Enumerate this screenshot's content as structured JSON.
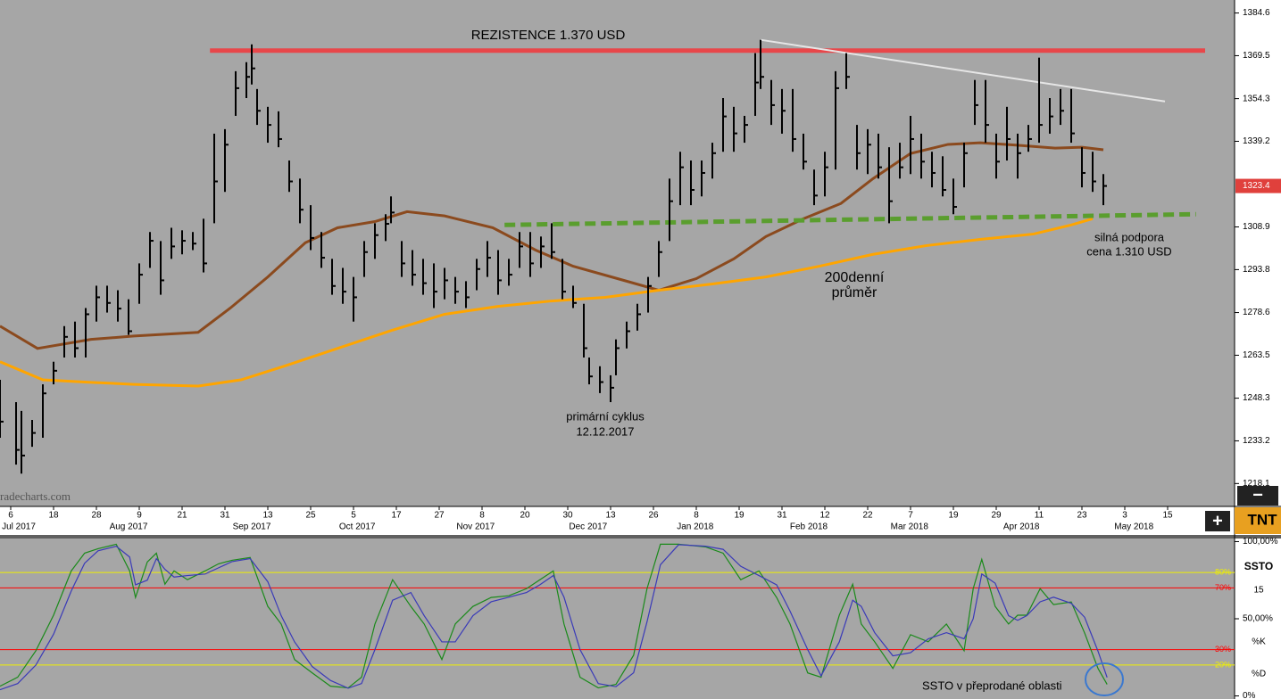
{
  "chart_data": [
    {
      "type": "ohlc",
      "color": "#000000",
      "x": [
        0,
        3,
        4,
        6,
        8,
        10,
        12,
        14,
        16,
        18,
        20,
        22,
        24,
        26,
        28,
        30,
        32,
        34,
        36,
        38,
        40,
        42,
        44,
        46,
        47,
        48,
        50,
        52,
        54,
        56,
        58,
        60,
        62,
        64,
        66,
        68,
        70,
        72,
        73,
        75,
        77,
        79,
        81,
        83,
        85,
        87,
        89,
        91,
        93,
        95,
        97,
        99,
        101,
        103,
        105,
        107,
        109,
        110,
        112,
        114,
        115,
        117,
        119,
        121,
        123,
        125,
        127,
        129,
        131,
        133,
        135,
        137,
        139,
        141,
        142,
        144,
        146,
        148,
        150,
        152,
        154,
        156,
        158,
        160,
        162,
        164,
        166,
        168,
        170,
        172,
        174,
        176,
        178,
        180,
        182,
        184,
        186,
        188,
        190,
        192,
        194,
        196,
        198,
        200,
        202,
        204,
        206
      ],
      "high": [
        1254.8,
        1246.9,
        1243.8,
        1240.6,
        1253.2,
        1261.2,
        1273.8,
        1275.4,
        1280.2,
        1288.1,
        1288.1,
        1286.5,
        1283.3,
        1296.0,
        1307.1,
        1303.9,
        1308.6,
        1307.7,
        1307.1,
        1311.8,
        1341.9,
        1343.5,
        1364.0,
        1367.2,
        1373.5,
        1357.7,
        1351.4,
        1349.8,
        1332.4,
        1326.0,
        1316.6,
        1307.1,
        1297.6,
        1294.4,
        1291.2,
        1303.9,
        1310.2,
        1313.4,
        1319.7,
        1303.9,
        1300.7,
        1297.6,
        1296.0,
        1294.4,
        1291.2,
        1289.7,
        1297.6,
        1303.9,
        1300.7,
        1297.6,
        1307.1,
        1307.1,
        1305.5,
        1310.2,
        1297.6,
        1288.1,
        1281.7,
        1262.7,
        1259.6,
        1256.4,
        1269.1,
        1275.4,
        1281.7,
        1291.2,
        1303.9,
        1326.0,
        1335.5,
        1332.4,
        1332.4,
        1338.7,
        1354.5,
        1351.4,
        1348.2,
        1370.4,
        1375.1,
        1360.9,
        1357.7,
        1357.7,
        1341.9,
        1329.2,
        1335.5,
        1364.0,
        1370.4,
        1345.0,
        1343.5,
        1341.9,
        1337.1,
        1338.7,
        1348.2,
        1341.9,
        1335.5,
        1333.9,
        1326.0,
        1338.7,
        1360.9,
        1360.9,
        1341.9,
        1351.4,
        1341.9,
        1345.0,
        1368.8,
        1354.5,
        1357.7,
        1357.7,
        1337.1,
        1335.5,
        1327.6
      ],
      "low": [
        1234.3,
        1224.8,
        1221.6,
        1231.1,
        1234.3,
        1253.2,
        1262.7,
        1262.7,
        1262.7,
        1275.4,
        1278.6,
        1275.4,
        1270.7,
        1281.7,
        1294.4,
        1284.9,
        1297.6,
        1299.2,
        1300.7,
        1292.8,
        1310.2,
        1321.3,
        1348.2,
        1354.5,
        1359.3,
        1345.0,
        1338.7,
        1337.1,
        1321.3,
        1310.2,
        1300.7,
        1294.4,
        1284.9,
        1281.7,
        1275.4,
        1291.2,
        1297.6,
        1303.9,
        1310.2,
        1291.2,
        1288.1,
        1284.9,
        1280.2,
        1283.3,
        1281.7,
        1280.2,
        1286.5,
        1291.2,
        1284.9,
        1288.1,
        1294.4,
        1291.2,
        1294.4,
        1297.6,
        1283.3,
        1280.2,
        1262.7,
        1253.2,
        1250.1,
        1246.9,
        1256.4,
        1265.9,
        1272.2,
        1278.6,
        1291.2,
        1303.9,
        1316.6,
        1316.6,
        1319.7,
        1326.0,
        1335.5,
        1335.5,
        1338.7,
        1348.2,
        1357.7,
        1345.0,
        1341.9,
        1335.5,
        1329.2,
        1316.6,
        1319.7,
        1329.2,
        1357.7,
        1329.2,
        1327.6,
        1326.0,
        1310.2,
        1326.0,
        1327.6,
        1326.0,
        1322.9,
        1319.7,
        1313.4,
        1322.9,
        1345.0,
        1338.7,
        1326.0,
        1332.4,
        1326.0,
        1335.5,
        1338.7,
        1341.9,
        1345.0,
        1338.7,
        1322.9,
        1321.3,
        1316.6
      ],
      "close": [
        1240,
        1230,
        1228,
        1236,
        1250,
        1258,
        1270,
        1266,
        1278,
        1284,
        1282,
        1280,
        1272,
        1292,
        1304,
        1290,
        1302,
        1304,
        1303,
        1296,
        1325,
        1338,
        1358,
        1362,
        1365,
        1350,
        1345,
        1340,
        1325,
        1315,
        1305,
        1298,
        1288,
        1286,
        1284,
        1300,
        1306,
        1310,
        1314,
        1296,
        1292,
        1289,
        1286,
        1290,
        1286,
        1284,
        1294,
        1298,
        1290,
        1292,
        1302,
        1296,
        1302,
        1300,
        1286,
        1282,
        1266,
        1256,
        1254,
        1252,
        1266,
        1272,
        1278,
        1288,
        1300,
        1318,
        1330,
        1322,
        1328,
        1335,
        1348,
        1342,
        1345,
        1360,
        1362,
        1352,
        1350,
        1340,
        1332,
        1320,
        1330,
        1358,
        1362,
        1335,
        1338,
        1330,
        1318,
        1330,
        1340,
        1332,
        1328,
        1322,
        1316,
        1335,
        1352,
        1345,
        1332,
        1340,
        1335,
        1340,
        1345,
        1348,
        1350,
        1342,
        1328,
        1325,
        1323.4
      ],
      "series": [
        {
          "color": "#8b4a1e",
          "x": [
            0,
            7,
            17,
            25,
            37,
            43,
            50,
            57,
            63,
            70,
            76,
            83,
            92,
            100,
            107,
            117,
            123,
            130,
            137,
            143,
            150,
            157,
            163,
            170,
            177,
            183,
            190,
            197,
            202,
            206
          ],
          "values": [
            1273.8,
            1265.9,
            1269.1,
            1270.3,
            1271.6,
            1280.2,
            1291.2,
            1303.3,
            1308.6,
            1310.8,
            1314.3,
            1312.8,
            1308.6,
            1300.7,
            1295.0,
            1289.7,
            1286.5,
            1290.6,
            1297.6,
            1305.5,
            1311.8,
            1317.2,
            1326.0,
            1334.9,
            1338.1,
            1338.7,
            1337.8,
            1336.8,
            1337.1,
            1336.2
          ]
        },
        {
          "color": "#ffa500",
          "x": [
            0,
            8,
            17,
            25,
            37,
            45,
            53,
            63,
            73,
            83,
            93,
            103,
            113,
            123,
            133,
            143,
            153,
            163,
            173,
            183,
            193,
            200,
            204
          ],
          "values": [
            1261.2,
            1254.8,
            1253.9,
            1253.2,
            1252.6,
            1254.8,
            1259.6,
            1265.9,
            1272.2,
            1278.0,
            1280.8,
            1282.7,
            1284.0,
            1286.5,
            1288.7,
            1291.2,
            1295.0,
            1299.2,
            1302.3,
            1304.5,
            1306.4,
            1309.6,
            1311.8
          ]
        }
      ],
      "trendlines": [
        {
          "color": "#e8474a",
          "x": [
            39.2,
            225
          ],
          "values": [
            1371.3,
            1371.3
          ]
        },
        {
          "color": "#e6e6e6",
          "x": [
            142,
            217.5
          ],
          "values": [
            1375.1,
            1353.3
          ]
        },
        {
          "color": "#5a9e2e",
          "x": [
            94.2,
            223.3
          ],
          "values": [
            1309.6,
            1313.4
          ],
          "dashed": true
        }
      ],
      "xlim": [
        0,
        230.5
      ],
      "ylim": [
        1210.0,
        1389.2
      ],
      "yticks": [
        1384.6,
        1369.5,
        1354.3,
        1339.2,
        1308.9,
        1293.8,
        1278.6,
        1263.5,
        1248.3,
        1233.2,
        1218.1
      ],
      "last_price": 1323.4,
      "xticks": [
        {
          "value": 2,
          "label": "6"
        },
        {
          "value": 10,
          "label": "18"
        },
        {
          "value": 18,
          "label": "28"
        },
        {
          "value": 26,
          "label": "9"
        },
        {
          "value": 34,
          "label": "21"
        },
        {
          "value": 42,
          "label": "31"
        },
        {
          "value": 50,
          "label": "13"
        },
        {
          "value": 58,
          "label": "25"
        },
        {
          "value": 66,
          "label": "5"
        },
        {
          "value": 74,
          "label": "17"
        },
        {
          "value": 82,
          "label": "27"
        },
        {
          "value": 90,
          "label": "8"
        },
        {
          "value": 98,
          "label": "20"
        },
        {
          "value": 106,
          "label": "30"
        },
        {
          "value": 114,
          "label": "13"
        },
        {
          "value": 122,
          "label": "26"
        },
        {
          "value": 130,
          "label": "8"
        },
        {
          "value": 138,
          "label": "19"
        },
        {
          "value": 146,
          "label": "31"
        },
        {
          "value": 154,
          "label": "12"
        },
        {
          "value": 162,
          "label": "22"
        },
        {
          "value": 170,
          "label": "7"
        },
        {
          "value": 178,
          "label": "19"
        },
        {
          "value": 186,
          "label": "29"
        },
        {
          "value": 194,
          "label": "11"
        },
        {
          "value": 202,
          "label": "23"
        },
        {
          "value": 210,
          "label": "3"
        },
        {
          "value": 218,
          "label": "15"
        }
      ],
      "month_ticks": [
        {
          "value": 3.5,
          "label": "Jul 2017"
        },
        {
          "value": 24,
          "label": "Aug 2017"
        },
        {
          "value": 47,
          "label": "Sep 2017"
        },
        {
          "value": 66.7,
          "label": "Oct 2017"
        },
        {
          "value": 88.8,
          "label": "Nov 2017"
        },
        {
          "value": 109.8,
          "label": "Dec 2017"
        },
        {
          "value": 129.8,
          "label": "Jan 2018"
        },
        {
          "value": 151,
          "label": "Feb 2018"
        },
        {
          "value": 169.8,
          "label": "Mar 2018"
        },
        {
          "value": 190.7,
          "label": "Apr 2018"
        },
        {
          "value": 211.7,
          "label": "May 2018"
        }
      ],
      "annotations": [
        "REZISTENCE 1.370 USD",
        "silná podpora",
        "cena 1.310 USD",
        "200denní",
        "průměr",
        "primární cyklus",
        "12.12.2017"
      ],
      "watermark": "radecharts.com"
    },
    {
      "type": "line",
      "title": "SSTO",
      "period": 15,
      "series": [
        {
          "name": "%K",
          "color": "#1a8a1a",
          "x": [
            0,
            3.3,
            6.7,
            10,
            13.3,
            15.8,
            18.3,
            21.7,
            24.2,
            25.3,
            27.5,
            29.2,
            30.8,
            32.5,
            35,
            38.3,
            40.8,
            43.3,
            46.7,
            50,
            52.5,
            55,
            58.3,
            61.7,
            65,
            67.5,
            70,
            73.3,
            76.7,
            79.2,
            82.5,
            85,
            88.3,
            91.7,
            95,
            98.3,
            100.8,
            103.3,
            105.3,
            108.3,
            111.7,
            115,
            118.3,
            120.8,
            123.3,
            126.7,
            131.7,
            135,
            138.3,
            141.7,
            145,
            147.5,
            150.8,
            153.3,
            156.7,
            159.2,
            160.8,
            163.3,
            166.7,
            170,
            173.3,
            176.7,
            180,
            181.7,
            183.3,
            185.8,
            188.3,
            190,
            191.7,
            194.2,
            196.7,
            200,
            202.5,
            205,
            206.7
          ],
          "values": [
            6.3,
            12.1,
            29.3,
            52.3,
            81.0,
            92.5,
            95.4,
            98.3,
            81.0,
            63.8,
            86.8,
            92.5,
            72.4,
            81.0,
            75.3,
            81.0,
            85.6,
            87.9,
            89.7,
            58.0,
            46.6,
            23.6,
            14.9,
            6.3,
            5.2,
            12.1,
            46.6,
            75.3,
            58.0,
            46.6,
            23.6,
            46.6,
            58.0,
            63.8,
            64.9,
            69.5,
            75.3,
            81.0,
            46.6,
            12.1,
            5.2,
            7.5,
            26.4,
            69.5,
            98.3,
            98.3,
            96.6,
            92.5,
            75.3,
            81.0,
            63.8,
            46.6,
            14.9,
            12.1,
            52.3,
            72.4,
            46.6,
            35.1,
            17.8,
            39.7,
            35.1,
            46.6,
            29.3,
            69.5,
            88.5,
            58.0,
            46.6,
            52.3,
            52.3,
            69.5,
            59.2,
            60.9,
            40.8,
            17.8,
            7.5
          ]
        },
        {
          "name": "%D",
          "color": "#3a3ab8",
          "x": [
            0,
            3.3,
            6.7,
            10,
            13.3,
            15.8,
            18.3,
            21.7,
            24.2,
            25.3,
            27.5,
            29.2,
            30.8,
            32.5,
            35,
            38.3,
            40.8,
            43.3,
            46.7,
            50,
            52.5,
            55,
            58.3,
            61.7,
            65,
            67.5,
            70,
            73.3,
            76.7,
            79.2,
            82.5,
            85,
            88.3,
            91.7,
            95,
            98.3,
            100.8,
            103.3,
            105.3,
            108.3,
            111.7,
            115,
            118.3,
            120.8,
            123.3,
            126.7,
            131.7,
            135,
            138.3,
            141.7,
            145,
            147.5,
            150.8,
            153.3,
            156.7,
            159.2,
            160.8,
            163.3,
            166.7,
            170,
            173.3,
            176.7,
            180,
            181.7,
            183.3,
            185.8,
            188.3,
            190,
            191.7,
            194.2,
            196.7,
            200,
            202.5,
            205,
            206.7
          ],
          "values": [
            4,
            8,
            20,
            40,
            68,
            86,
            94,
            97,
            90,
            72,
            75,
            89,
            82,
            77,
            78,
            79,
            83,
            87,
            89,
            74,
            52,
            35,
            19,
            10,
            5,
            8,
            30,
            62,
            67,
            52,
            35,
            35,
            52,
            61,
            64,
            67,
            72,
            78,
            64,
            30,
            8,
            6,
            15,
            48,
            85,
            98,
            97,
            95,
            84,
            78,
            72,
            55,
            30,
            13,
            35,
            62,
            58,
            41,
            26,
            28,
            37,
            41,
            37,
            50,
            79,
            73,
            52,
            49,
            52,
            61,
            64,
            60,
            51,
            29,
            12
          ]
        }
      ],
      "xlim": [
        0,
        230.5
      ],
      "ylim": [
        -2,
        102
      ],
      "yticks": [
        {
          "value": 100,
          "label": "100,00%"
        },
        {
          "value": 50,
          "label": "50,00%"
        },
        {
          "value": 0,
          "label": "0%"
        }
      ],
      "levels": [
        {
          "value": 80,
          "label": "80%",
          "color": "#f0f000"
        },
        {
          "value": 70,
          "label": "70%",
          "color": "#ff0000"
        },
        {
          "value": 30,
          "label": "30%",
          "color": "#ff0000"
        },
        {
          "value": 20,
          "label": "20%",
          "color": "#f0f000"
        }
      ],
      "annotation": "SSTO v přeprodané oblasti"
    }
  ],
  "ui": {
    "minus": "−",
    "plus": "+",
    "logo": "TNT"
  }
}
